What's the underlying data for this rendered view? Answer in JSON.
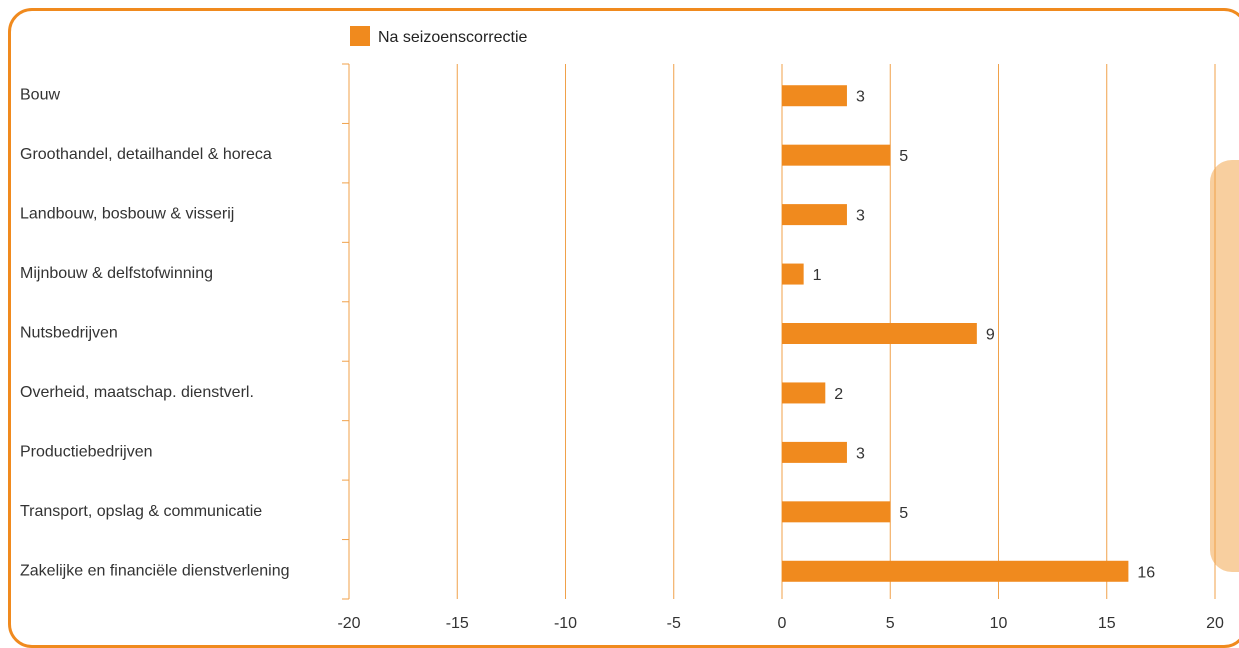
{
  "chart_data": {
    "type": "bar",
    "orientation": "horizontal",
    "categories": [
      "Bouw",
      "Groothandel, detailhandel & horeca",
      "Landbouw, bosbouw & visserij",
      "Mijnbouw & delfstofwinning",
      "Nutsbedrijven",
      "Overheid, maatschap. dienstverl.",
      "Productiebedrijven",
      "Transport, opslag & communicatie",
      "Zakelijke en financiële dienstverlening"
    ],
    "series": [
      {
        "name": "Na seizoenscorrectie",
        "values": [
          3,
          5,
          3,
          1,
          9,
          2,
          3,
          5,
          16
        ]
      }
    ],
    "xlim": [
      -20,
      20
    ],
    "xticks": [
      -20,
      -15,
      -10,
      -5,
      0,
      5,
      10,
      15,
      20
    ],
    "grid": "vertical",
    "legend": "top-left"
  },
  "colors": {
    "accent": "#f08a1e",
    "bar": "#f08a1e",
    "grid": "#f0a14a",
    "sidebox": "#f8cf9f"
  }
}
